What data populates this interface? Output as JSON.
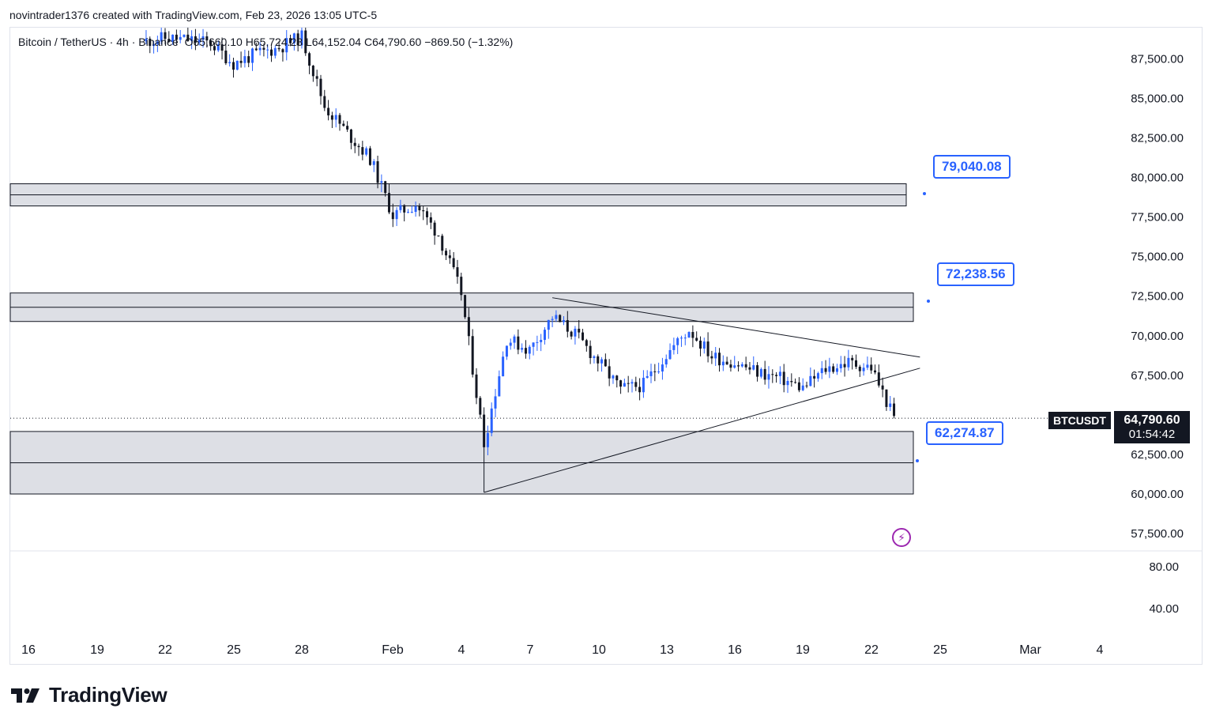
{
  "header": {
    "text": "novintrader1376 created with TradingView.com, Feb 23, 2026 13:05 UTC-5"
  },
  "legend": {
    "symbol": "Bitcoin / TetherUS · 4h · Binance",
    "open": "O65,660.10",
    "high": "H65,724.28",
    "low": "L64,152.04",
    "close": "C64,790.60",
    "change": "−869.50 (−1.32%)"
  },
  "price_axis": [
    "87,500.00",
    "85,000.00",
    "82,500.00",
    "80,000.00",
    "77,500.00",
    "75,000.00",
    "72,500.00",
    "70,000.00",
    "67,500.00",
    "62,500.00",
    "60,000.00",
    "57,500.00"
  ],
  "indicator_axis": [
    "80.00",
    "40.00"
  ],
  "time_axis": [
    "16",
    "19",
    "22",
    "25",
    "28",
    "Feb",
    "4",
    "7",
    "10",
    "13",
    "16",
    "19",
    "22",
    "25",
    "Mar",
    "4"
  ],
  "last_price": {
    "symbol": "BTCUSDT",
    "value": "64,790.60",
    "countdown": "01:54:42"
  },
  "callouts": [
    {
      "label": "79,040.08"
    },
    {
      "label": "72,238.56"
    },
    {
      "label": "62,274.87"
    }
  ],
  "footer": {
    "brand": "TradingView"
  },
  "colors": {
    "up": "#2962ff",
    "down": "#131722",
    "zone": "#d1d4dc",
    "accent": "#2962ff",
    "alert": "#9c27b0"
  },
  "chart_data": {
    "type": "candlestick",
    "timeframe": "4h",
    "ylim": [
      56500,
      89500
    ],
    "zones": [
      {
        "from": 78200,
        "to": 79600
      },
      {
        "from": 70900,
        "to": 72700
      },
      {
        "from": 60000,
        "to": 63950
      }
    ],
    "trendlines": [
      {
        "from": [
          "2026-02-08",
          72400
        ],
        "to": [
          "2026-02-24",
          68650
        ]
      },
      {
        "from": [
          "2026-02-05",
          60100
        ],
        "to": [
          "2026-02-24",
          67950
        ]
      }
    ],
    "closes": [
      [
        "2026-01-21",
        88600
      ],
      [
        "2026-01-22",
        88800
      ],
      [
        "2026-01-23",
        88700
      ],
      [
        "2026-01-24",
        88500
      ],
      [
        "2026-01-25",
        87200
      ],
      [
        "2026-01-26",
        87800
      ],
      [
        "2026-01-27",
        88200
      ],
      [
        "2026-01-28",
        88900
      ],
      [
        "2026-01-29",
        84500
      ],
      [
        "2026-01-30",
        82800
      ],
      [
        "2026-01-31",
        81200
      ],
      [
        "2026-02-01",
        77600
      ],
      [
        "2026-02-02",
        78300
      ],
      [
        "2026-02-03",
        76400
      ],
      [
        "2026-02-04",
        72700
      ],
      [
        "2026-02-05",
        63200
      ],
      [
        "2026-02-06",
        69800
      ],
      [
        "2026-02-07",
        69100
      ],
      [
        "2026-02-08",
        71200
      ],
      [
        "2026-02-09",
        70100
      ],
      [
        "2026-02-10",
        68400
      ],
      [
        "2026-02-11",
        66600
      ],
      [
        "2026-02-12",
        66900
      ],
      [
        "2026-02-13",
        68800
      ],
      [
        "2026-02-14",
        70400
      ],
      [
        "2026-02-15",
        68700
      ],
      [
        "2026-02-16",
        68300
      ],
      [
        "2026-02-17",
        67700
      ],
      [
        "2026-02-18",
        67300
      ],
      [
        "2026-02-19",
        66700
      ],
      [
        "2026-02-20",
        67900
      ],
      [
        "2026-02-21",
        68300
      ],
      [
        "2026-02-22",
        68000
      ],
      [
        "2026-02-23",
        64790.6
      ]
    ]
  }
}
